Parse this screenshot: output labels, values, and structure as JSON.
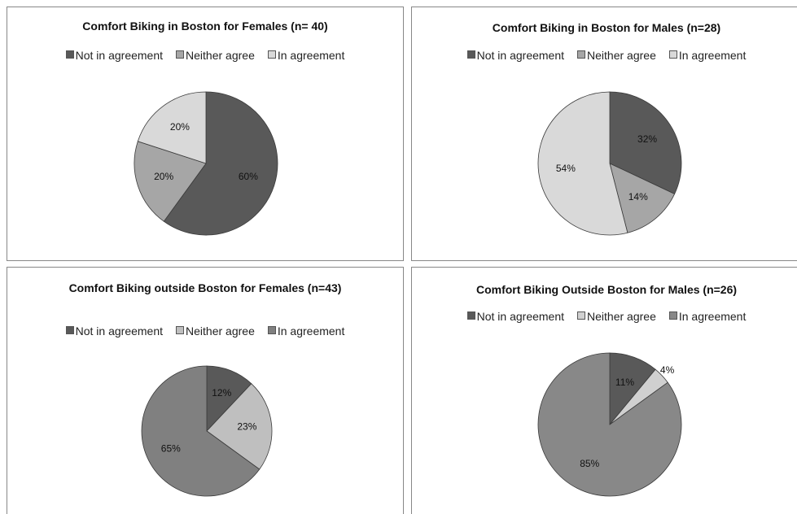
{
  "chart_data": [
    {
      "type": "pie",
      "title": "Comfort Biking in Boston for Females (n= 40)",
      "categories": [
        "Not in agreement",
        "Neither agree",
        "In agreement"
      ],
      "values": [
        60,
        20,
        20
      ],
      "value_labels": [
        "60%",
        "20%",
        "20%"
      ],
      "colors": [
        "#595959",
        "#a6a6a6",
        "#d9d9d9"
      ]
    },
    {
      "type": "pie",
      "title": "Comfort Biking in Boston for Males (n=28)",
      "categories": [
        "Not in agreement",
        "Neither agree",
        "In agreement"
      ],
      "values": [
        32,
        14,
        54
      ],
      "value_labels": [
        "32%",
        "14%",
        "54%"
      ],
      "colors": [
        "#595959",
        "#a6a6a6",
        "#d9d9d9"
      ]
    },
    {
      "type": "pie",
      "title": "Comfort Biking outside Boston for Females (n=43)",
      "categories": [
        "Not in agreement",
        "Neither agree",
        "In agreement"
      ],
      "values": [
        12,
        23,
        65
      ],
      "value_labels": [
        "12%",
        "23%",
        "65%"
      ],
      "colors": [
        "#595959",
        "#bfbfbf",
        "#808080"
      ]
    },
    {
      "type": "pie",
      "title": "Comfort Biking Outside Boston for Males (n=26)",
      "categories": [
        "Not in agreement",
        "Neither agree",
        "In agreement"
      ],
      "values": [
        11,
        4,
        85
      ],
      "value_labels": [
        "11%",
        "4%",
        "85%"
      ],
      "colors": [
        "#595959",
        "#d0d0d0",
        "#888888"
      ]
    }
  ]
}
